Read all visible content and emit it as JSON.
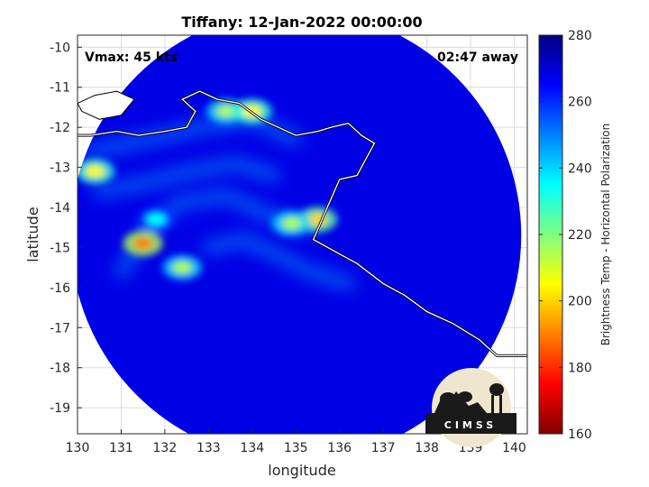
{
  "chart_data": {
    "type": "heatmap",
    "title": "Tiffany: 12-Jan-2022 00:00:00",
    "xlabel": "longitude",
    "ylabel": "latitude",
    "xlim": [
      130,
      140.3
    ],
    "ylim": [
      -19.65,
      -9.7
    ],
    "xticks": [
      "130",
      "131",
      "132",
      "133",
      "134",
      "135",
      "136",
      "137",
      "138",
      "139",
      "140"
    ],
    "yticks": [
      "-10",
      "-11",
      "-12",
      "-13",
      "-14",
      "-15",
      "-16",
      "-17",
      "-18",
      "-19"
    ],
    "grid": true,
    "annotations": {
      "vmax": "Vmax: 45 kts",
      "time_offset": "02:47 away"
    },
    "colorbar": {
      "label": "Brightness Temp - Horizontal Polarization",
      "range": [
        160,
        280
      ],
      "ticks": [
        "160",
        "180",
        "200",
        "220",
        "240",
        "260",
        "280"
      ],
      "colormap": [
        "#7f0000",
        "#ff0000",
        "#ff8000",
        "#ffff00",
        "#80ff80",
        "#00ffff",
        "#0080ff",
        "#0000ff",
        "#00007f"
      ]
    },
    "swath": {
      "center": [
        135.0,
        -14.7
      ],
      "background_value": 268
    },
    "features": [
      {
        "lon": 130.4,
        "lat": -13.1,
        "value": 205
      },
      {
        "lon": 131.5,
        "lat": -14.9,
        "value": 190
      },
      {
        "lon": 132.4,
        "lat": -15.5,
        "value": 215
      },
      {
        "lon": 133.4,
        "lat": -11.6,
        "value": 215
      },
      {
        "lon": 134.0,
        "lat": -11.6,
        "value": 205
      },
      {
        "lon": 135.5,
        "lat": -14.3,
        "value": 200
      },
      {
        "lon": 134.9,
        "lat": -14.4,
        "value": 215
      },
      {
        "lon": 131.8,
        "lat": -14.3,
        "value": 235
      }
    ],
    "coastline": [
      [
        130.0,
        -12.2
      ],
      [
        130.3,
        -12.2
      ],
      [
        130.9,
        -12.1
      ],
      [
        131.4,
        -12.2
      ],
      [
        132.0,
        -12.1
      ],
      [
        132.5,
        -12.0
      ],
      [
        132.7,
        -11.6
      ],
      [
        132.4,
        -11.3
      ],
      [
        132.8,
        -11.1
      ],
      [
        133.2,
        -11.3
      ],
      [
        133.7,
        -11.4
      ],
      [
        134.2,
        -11.8
      ],
      [
        134.6,
        -12.0
      ],
      [
        135.0,
        -12.2
      ],
      [
        135.5,
        -12.1
      ],
      [
        135.8,
        -12.0
      ],
      [
        136.2,
        -11.9
      ],
      [
        136.5,
        -12.2
      ],
      [
        136.8,
        -12.4
      ],
      [
        136.6,
        -12.8
      ],
      [
        136.4,
        -13.2
      ],
      [
        136.0,
        -13.3
      ],
      [
        135.8,
        -13.8
      ],
      [
        135.6,
        -14.3
      ],
      [
        135.4,
        -14.8
      ],
      [
        135.9,
        -15.1
      ],
      [
        136.4,
        -15.4
      ],
      [
        137.0,
        -15.9
      ],
      [
        137.5,
        -16.2
      ],
      [
        138.0,
        -16.6
      ],
      [
        138.6,
        -16.9
      ],
      [
        139.2,
        -17.3
      ],
      [
        139.6,
        -17.7
      ],
      [
        140.0,
        -17.7
      ],
      [
        140.3,
        -17.7
      ]
    ],
    "coastline_nw": [
      [
        130.0,
        -11.4
      ],
      [
        130.4,
        -11.2
      ],
      [
        130.9,
        -11.1
      ],
      [
        131.3,
        -11.3
      ],
      [
        131.0,
        -11.7
      ],
      [
        130.5,
        -11.8
      ],
      [
        130.1,
        -11.6
      ],
      [
        130.0,
        -11.4
      ]
    ],
    "logo": "CIMSS"
  }
}
